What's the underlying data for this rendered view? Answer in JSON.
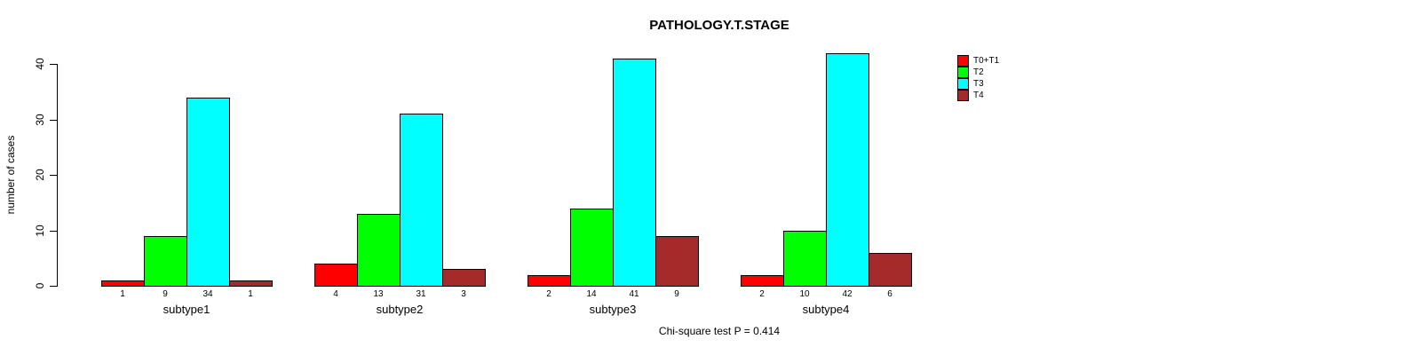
{
  "chart_data": {
    "type": "bar",
    "title": "PATHOLOGY.T.STAGE",
    "ylabel": "number of cases",
    "xlabel": "",
    "categories": [
      "subtype1",
      "subtype2",
      "subtype3",
      "subtype4"
    ],
    "series": [
      {
        "name": "T0+T1",
        "color": "#ff0000",
        "values": [
          1,
          4,
          2,
          2
        ]
      },
      {
        "name": "T2",
        "color": "#00ff00",
        "values": [
          9,
          13,
          14,
          10
        ]
      },
      {
        "name": "T3",
        "color": "#00ffff",
        "values": [
          34,
          31,
          41,
          42
        ]
      },
      {
        "name": "T4",
        "color": "#a52a2a",
        "values": [
          1,
          3,
          9,
          6
        ]
      }
    ],
    "ylim": [
      0,
      40
    ],
    "yticks": [
      0,
      10,
      20,
      30,
      40
    ],
    "grid": false,
    "bar_labels": true,
    "legend_position": "top-right",
    "caption": "Chi-square test P = 0.414"
  }
}
